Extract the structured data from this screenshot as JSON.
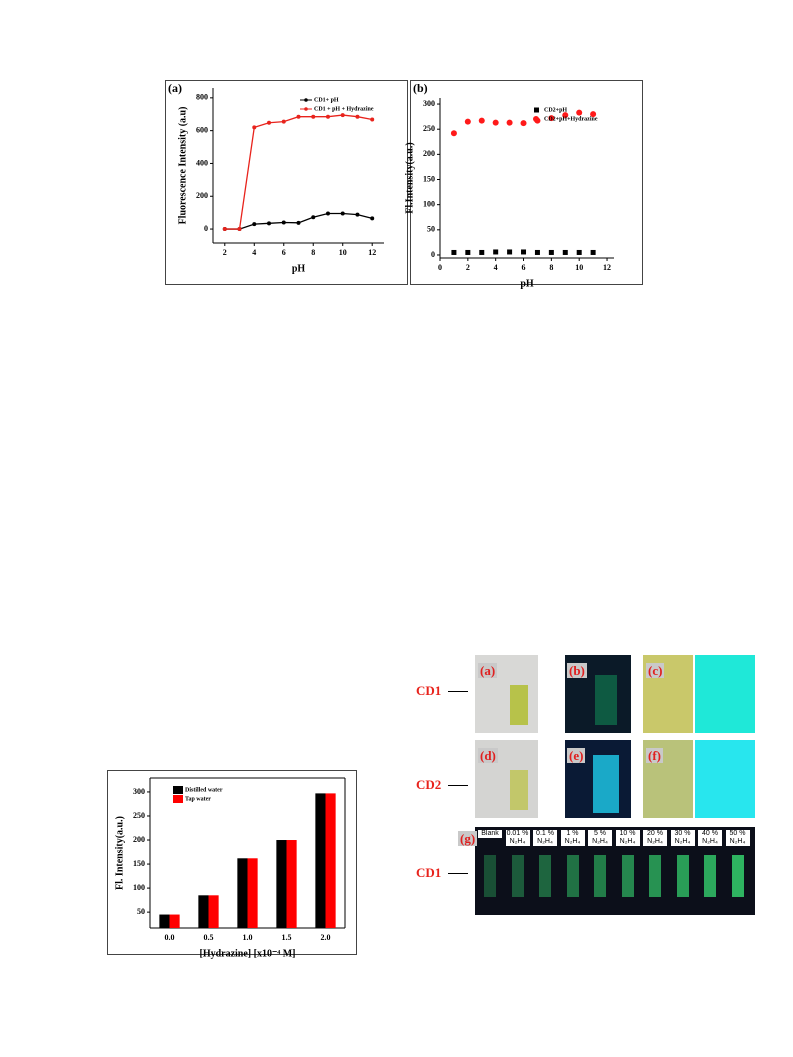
{
  "chart_data": [
    {
      "type": "line",
      "panel": "(a)",
      "xlabel": "pH",
      "ylabel": "Fluorescence Intensity (a.u)",
      "x": [
        2,
        3,
        4,
        5,
        6,
        7,
        8,
        9,
        10,
        11,
        12
      ],
      "series": [
        {
          "name": "CD1+ pH",
          "color": "#000000",
          "values": [
            0,
            0,
            30,
            35,
            40,
            38,
            72,
            95,
            95,
            88,
            65
          ]
        },
        {
          "name": "CD1 + pH + Hydrazine",
          "color": "#e8231c",
          "values": [
            0,
            0,
            620,
            648,
            655,
            685,
            685,
            685,
            695,
            685,
            668
          ]
        }
      ],
      "xlim": [
        1.2,
        12.8
      ],
      "xticks": [
        2,
        4,
        6,
        8,
        10,
        12
      ],
      "ylim": [
        -85,
        860
      ],
      "yticks": [
        0,
        200,
        400,
        600,
        800
      ],
      "legend": "upper right"
    },
    {
      "type": "scatter",
      "panel": "(b)",
      "xlabel": "pH",
      "ylabel": "Fl.Intensity(a.u.)",
      "x": [
        1,
        2,
        3,
        4,
        5,
        6,
        7,
        8,
        9,
        10,
        11
      ],
      "series": [
        {
          "name": "CD2+pH",
          "color": "#000000",
          "marker": "square",
          "values": [
            5,
            5,
            5,
            6,
            6,
            6,
            5,
            5,
            5,
            5,
            5
          ]
        },
        {
          "name": "CD2+pH+Hydrazine",
          "color": "#ff1a1a",
          "marker": "circle",
          "values": [
            242,
            265,
            267,
            263,
            263,
            262,
            267,
            272,
            278,
            283,
            280
          ]
        }
      ],
      "xlim": [
        0,
        12.5
      ],
      "xticks": [
        0,
        2,
        4,
        6,
        8,
        10,
        12
      ],
      "ylim": [
        -6,
        312
      ],
      "yticks": [
        0,
        50,
        100,
        150,
        200,
        250,
        300
      ],
      "legend": "upper right"
    },
    {
      "type": "bar",
      "xlabel": "[Hydrazine] [x10⁻⁴ M]",
      "ylabel": "Fl. Intensity(a.u.)",
      "categories": [
        "0.0",
        "0.5",
        "1.0",
        "1.5",
        "2.0"
      ],
      "series": [
        {
          "name": "Distilled water",
          "color": "#000000",
          "values": [
            45,
            85,
            162,
            200,
            297
          ]
        },
        {
          "name": "Tap water",
          "color": "#ff0000",
          "values": [
            45,
            85,
            162,
            200,
            297
          ]
        }
      ],
      "ylim": [
        17,
        329
      ],
      "yticks": [
        50,
        100,
        150,
        200,
        250,
        300
      ],
      "legend": "upper left"
    }
  ],
  "photo_panel": {
    "rows": [
      "CD1",
      "CD2",
      "CD1"
    ],
    "panels": [
      "(a)",
      "(b)",
      "(c)",
      "(d)",
      "(e)",
      "(f)",
      "(g)"
    ],
    "vials": [
      "Blank",
      "0.01 % N₂H₄",
      "0.1 % N₂H₄",
      "1 % N₂H₄",
      "5 % N₂H₄",
      "10 % N₂H₄",
      "20 % N₂H₄",
      "30 % N₂H₄",
      "40 % N₂H₄",
      "50 % N₂H₄"
    ]
  }
}
